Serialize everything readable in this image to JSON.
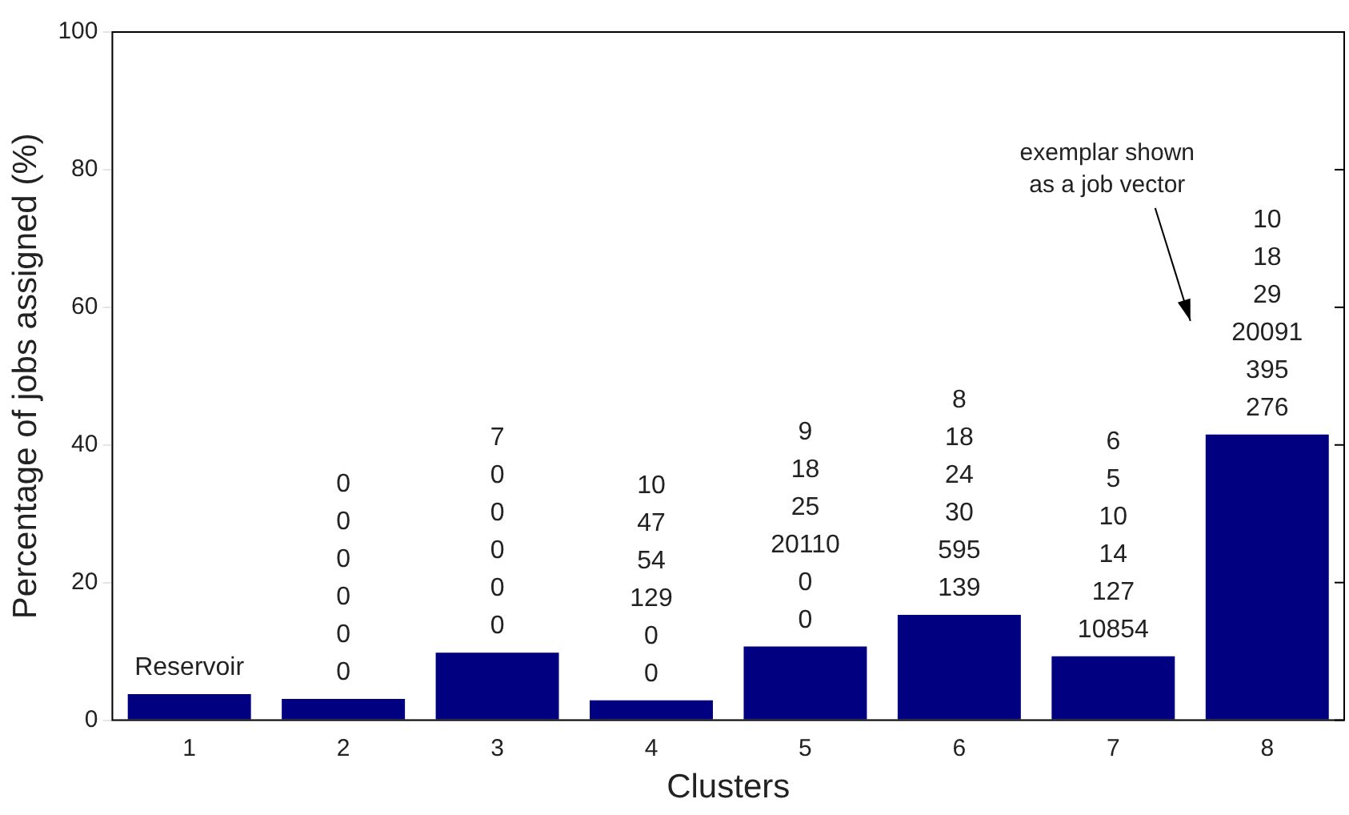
{
  "chart_data": {
    "type": "bar",
    "xlabel": "Clusters",
    "ylabel": "Percentage of jobs assigned (%)",
    "categories": [
      "1",
      "2",
      "3",
      "4",
      "5",
      "6",
      "7",
      "8"
    ],
    "values": [
      3.8,
      3.1,
      9.8,
      2.9,
      10.7,
      15.3,
      9.3,
      41.5
    ],
    "color": "#000080",
    "ylim": [
      0,
      100
    ],
    "yticks": [
      0,
      20,
      40,
      60,
      80,
      100
    ],
    "grid": false,
    "legend": false,
    "annotations": [
      {
        "text": "Reservoir",
        "x": "1",
        "y": 3.8
      },
      {
        "text": "0\n0\n0\n0\n0\n0",
        "x": "2",
        "y": 3.1
      },
      {
        "text": "7\n0\n0\n0\n0\n0",
        "x": "3",
        "y": 9.8
      },
      {
        "text": "10\n47\n54\n129\n0\n0",
        "x": "4",
        "y": 2.9
      },
      {
        "text": "9\n18\n25\n20110\n0\n0",
        "x": "5",
        "y": 10.7
      },
      {
        "text": "8\n18\n24\n30\n595\n139",
        "x": "6",
        "y": 15.3
      },
      {
        "text": "6\n5\n10\n14\n127\n10854",
        "x": "7",
        "y": 9.3
      },
      {
        "text": "10\n18\n29\n20091\n395\n276",
        "x": "8",
        "y": 41.5
      },
      "exemplar shown\nas a job vector"
    ]
  }
}
